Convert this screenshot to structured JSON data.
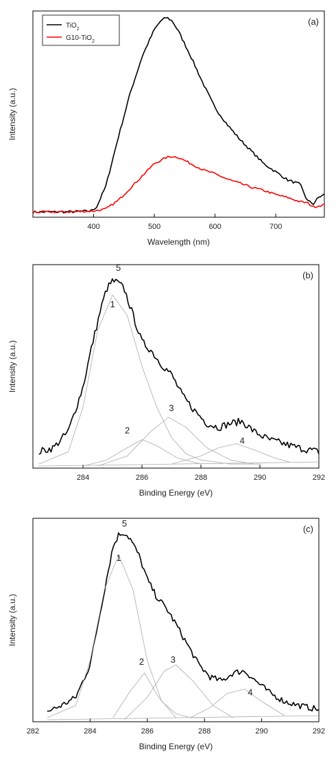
{
  "chart_data": [
    {
      "type": "line",
      "panel_label": "(a)",
      "xlabel": "Wavelength (nm)",
      "ylabel": "Intensity (a.u.)",
      "xlim": [
        300,
        780
      ],
      "ylim": [
        0,
        100
      ],
      "xticks": [
        400,
        500,
        600,
        700
      ],
      "legend_position": "top-left",
      "series": [
        {
          "name": "TiO",
          "name_sub": "2",
          "color": "#000000",
          "x": [
            300,
            360,
            395,
            405,
            420,
            440,
            460,
            480,
            500,
            510,
            520,
            530,
            540,
            560,
            580,
            600,
            620,
            640,
            660,
            680,
            700,
            720,
            740,
            752,
            762,
            770,
            780
          ],
          "y": [
            2.5,
            2.6,
            3.0,
            5.0,
            15.0,
            38.0,
            60.0,
            78.0,
            91.0,
            95.0,
            97.0,
            95.0,
            90.0,
            78.0,
            65.0,
            53.0,
            45.0,
            38.0,
            32.0,
            26.0,
            22.0,
            18.0,
            16.0,
            8.0,
            6.5,
            9.5,
            11.0
          ]
        },
        {
          "name": "G10-TiO",
          "name_sub": "2",
          "color": "#ff0000",
          "x": [
            300,
            360,
            400,
            420,
            440,
            460,
            480,
            500,
            520,
            530,
            540,
            560,
            580,
            600,
            620,
            640,
            660,
            680,
            700,
            720,
            740,
            752,
            762,
            780
          ],
          "y": [
            2.5,
            2.6,
            3.0,
            4.0,
            8.0,
            14.0,
            20.0,
            26.0,
            29.0,
            29.5,
            29.0,
            26.0,
            23.0,
            21.0,
            18.5,
            16.5,
            14.5,
            13.0,
            11.0,
            9.5,
            7.5,
            7.0,
            5.0,
            6.0
          ]
        }
      ]
    },
    {
      "type": "line",
      "panel_label": "(b)",
      "xlabel": "Binding Energy (eV)",
      "ylabel": "Intensity (a.u.)",
      "xlim": [
        282.3,
        292
      ],
      "ylim": [
        0,
        100
      ],
      "xticks": [
        284,
        286,
        288,
        290,
        292
      ],
      "series": [
        {
          "name": "",
          "color": "#000000",
          "x": [
            282.5,
            283.0,
            283.5,
            284.0,
            284.3,
            284.6,
            284.8,
            285.0,
            285.2,
            285.4,
            285.7,
            286.0,
            286.3,
            286.6,
            287.0,
            287.4,
            287.8,
            288.2,
            288.6,
            289.0,
            289.4,
            289.8,
            290.3,
            290.8,
            291.3,
            292.0
          ],
          "y": [
            8,
            10,
            18,
            40,
            60,
            78,
            88,
            92,
            91,
            88,
            75,
            62,
            58,
            52,
            46,
            35,
            28,
            22,
            20,
            22,
            23,
            18,
            14,
            12,
            10,
            8
          ]
        },
        {
          "name": "1",
          "color": "#aaaaaa",
          "x": [
            282.5,
            283.5,
            284.0,
            284.5,
            285.0,
            285.5,
            286.0,
            286.5,
            287.0,
            287.5,
            288.0,
            288.5,
            289.0,
            290.0
          ],
          "y": [
            2,
            8,
            30,
            68,
            85,
            75,
            50,
            30,
            15,
            7,
            4,
            3,
            2,
            2
          ]
        },
        {
          "name": "2",
          "color": "#aaaaaa",
          "x": [
            284.0,
            284.8,
            285.5,
            286.0,
            286.5,
            287.2,
            288.0
          ],
          "y": [
            1,
            4,
            10,
            14,
            11,
            5,
            2
          ]
        },
        {
          "name": "3",
          "color": "#aaaaaa",
          "x": [
            284.5,
            285.5,
            286.3,
            286.9,
            287.5,
            288.2,
            289.0,
            289.8
          ],
          "y": [
            1,
            6,
            18,
            25,
            20,
            10,
            4,
            2
          ]
        },
        {
          "name": "4",
          "color": "#aaaaaa",
          "x": [
            287.0,
            288.0,
            288.6,
            289.2,
            289.8,
            290.5,
            291.0
          ],
          "y": [
            2,
            6,
            10,
            12,
            9,
            5,
            3
          ]
        },
        {
          "name": "5",
          "color": "#aaaaaa",
          "x": [
            282.5,
            292.0
          ],
          "y": [
            1,
            3
          ]
        }
      ],
      "peak_labels": [
        {
          "text": "5",
          "x": 285.2,
          "y": 97
        },
        {
          "text": "1",
          "x": 285.0,
          "y": 79
        },
        {
          "text": "2",
          "x": 285.5,
          "y": 17
        },
        {
          "text": "3",
          "x": 287.0,
          "y": 28
        },
        {
          "text": "4",
          "x": 289.4,
          "y": 12
        }
      ]
    },
    {
      "type": "line",
      "panel_label": "(c)",
      "xlabel": "Binding Energy (eV)",
      "ylabel": "Intensity (a.u.)",
      "xlim": [
        282,
        292
      ],
      "ylim": [
        0,
        100
      ],
      "xticks": [
        282,
        284,
        286,
        288,
        290,
        292
      ],
      "series": [
        {
          "name": "",
          "color": "#000000",
          "x": [
            282.5,
            283.0,
            283.5,
            284.0,
            284.3,
            284.6,
            284.8,
            285.0,
            285.2,
            285.4,
            285.7,
            286.0,
            286.3,
            286.7,
            287.0,
            287.4,
            287.8,
            288.2,
            288.6,
            289.0,
            289.4,
            289.8,
            290.3,
            290.8,
            291.3,
            292.0
          ],
          "y": [
            5,
            8,
            12,
            28,
            50,
            72,
            86,
            92,
            93,
            90,
            82,
            70,
            62,
            55,
            48,
            38,
            28,
            22,
            20,
            24,
            25,
            20,
            14,
            10,
            8,
            6
          ]
        },
        {
          "name": "1",
          "color": "#aaaaaa",
          "x": [
            282.5,
            283.5,
            284.0,
            284.5,
            285.0,
            285.5,
            286.0,
            286.5,
            287.0,
            287.5,
            288.0
          ],
          "y": [
            2,
            8,
            30,
            65,
            82,
            65,
            30,
            10,
            4,
            2,
            2
          ]
        },
        {
          "name": "2",
          "color": "#aaaaaa",
          "x": [
            284.8,
            285.4,
            285.9,
            286.4,
            287.0
          ],
          "y": [
            2,
            15,
            24,
            12,
            2
          ]
        },
        {
          "name": "3",
          "color": "#aaaaaa",
          "x": [
            285.2,
            286.0,
            286.6,
            287.0,
            287.6,
            288.3,
            289.0
          ],
          "y": [
            1,
            12,
            25,
            28,
            20,
            8,
            2
          ]
        },
        {
          "name": "4",
          "color": "#aaaaaa",
          "x": [
            287.5,
            288.2,
            288.8,
            289.4,
            290.0,
            290.8
          ],
          "y": [
            2,
            7,
            14,
            16,
            10,
            3
          ]
        },
        {
          "name": "5",
          "color": "#aaaaaa",
          "x": [
            282.5,
            292.0
          ],
          "y": [
            1,
            3
          ]
        }
      ],
      "peak_labels": [
        {
          "text": "5",
          "x": 285.2,
          "y": 96
        },
        {
          "text": "1",
          "x": 285.0,
          "y": 79
        },
        {
          "text": "2",
          "x": 285.8,
          "y": 28
        },
        {
          "text": "3",
          "x": 286.9,
          "y": 29
        },
        {
          "text": "4",
          "x": 289.6,
          "y": 13
        }
      ]
    }
  ]
}
